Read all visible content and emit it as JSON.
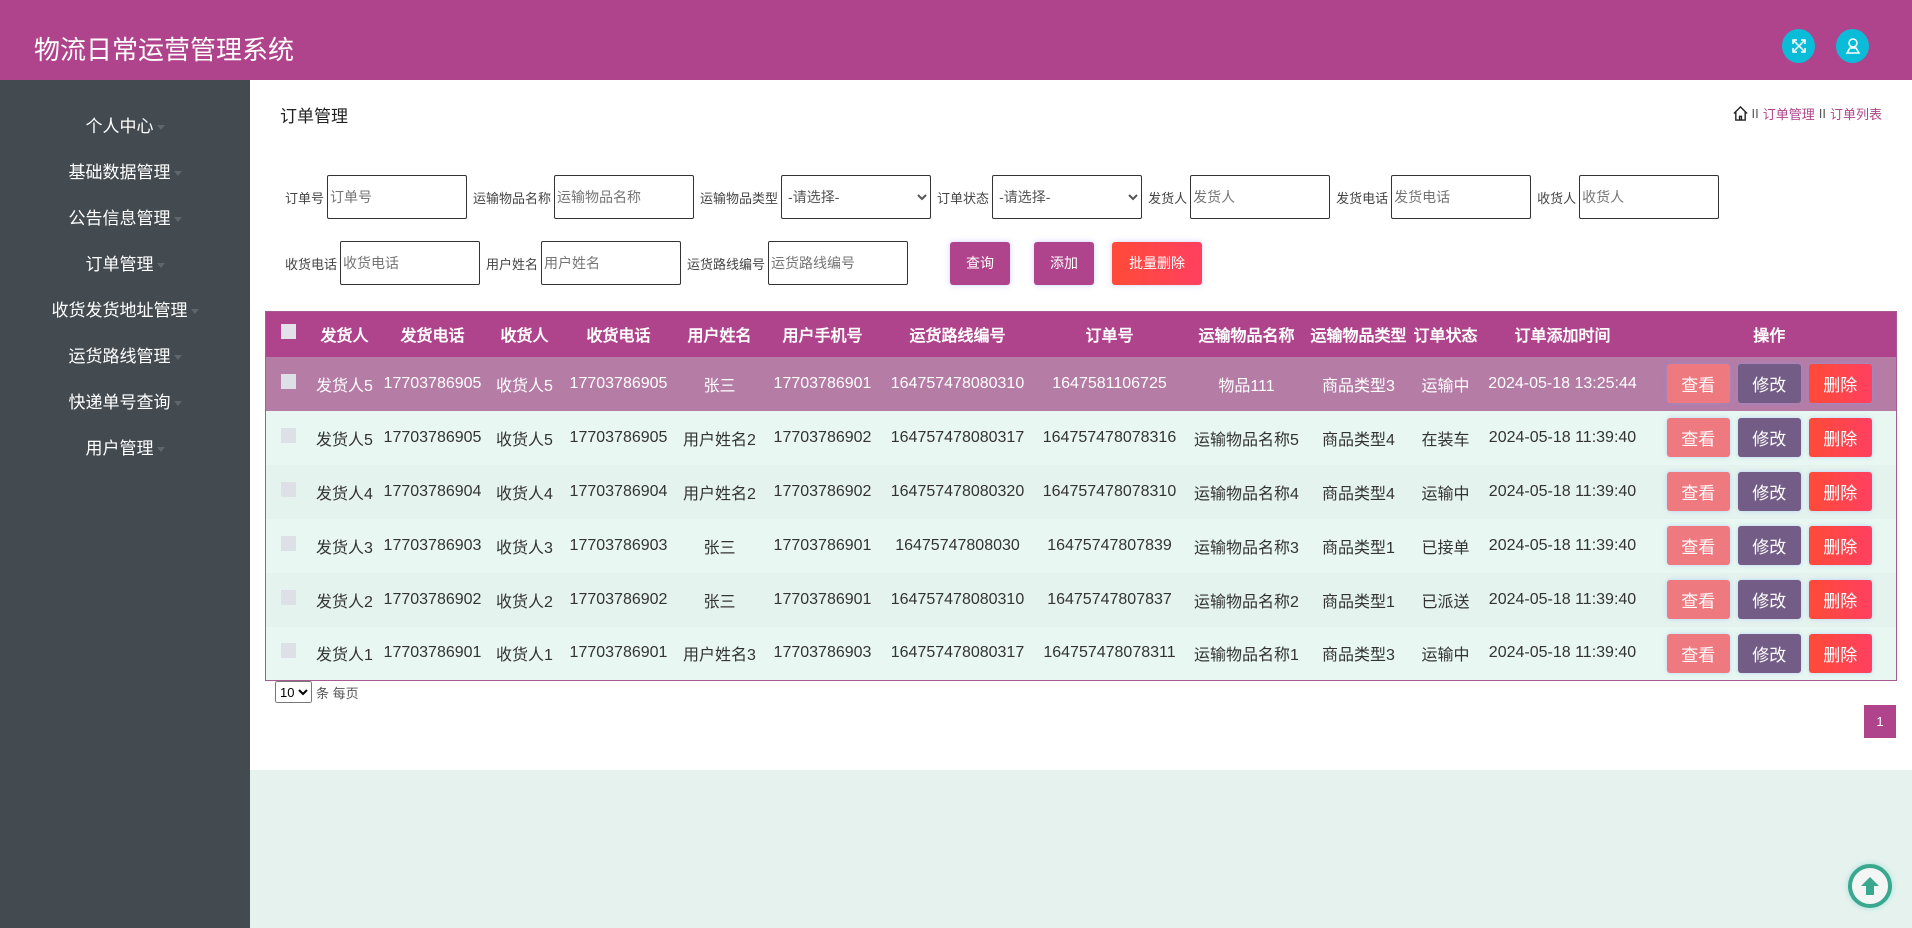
{
  "header": {
    "title": "物流日常运营管理系统",
    "icons": [
      "fullscreen-icon",
      "user-icon"
    ],
    "color": "#b0448c"
  },
  "sidebar": {
    "items": [
      {
        "label": "个人中心"
      },
      {
        "label": "基础数据管理"
      },
      {
        "label": "公告信息管理"
      },
      {
        "label": "订单管理"
      },
      {
        "label": "收货发货地址管理"
      },
      {
        "label": "运货路线管理"
      },
      {
        "label": "快递单号查询"
      },
      {
        "label": "用户管理"
      }
    ]
  },
  "page": {
    "title": "订单管理",
    "breadcrumb": [
      "订单管理",
      "订单列表"
    ],
    "separator": "II"
  },
  "search": {
    "order_no": {
      "label": "订单号",
      "placeholder": "订单号"
    },
    "goods_name": {
      "label": "运输物品名称",
      "placeholder": "运输物品名称"
    },
    "goods_type": {
      "label": "运输物品类型",
      "value": "-请选择-"
    },
    "status": {
      "label": "订单状态",
      "value": "-请选择-"
    },
    "sender": {
      "label": "发货人",
      "placeholder": "发货人"
    },
    "sender_phone": {
      "label": "发货电话",
      "placeholder": "发货电话"
    },
    "receiver": {
      "label": "收货人",
      "placeholder": "收货人"
    },
    "receiver_phone": {
      "label": "收货电话",
      "placeholder": "收货电话"
    },
    "user_name": {
      "label": "用户姓名",
      "placeholder": "用户姓名"
    },
    "route_no": {
      "label": "运货路线编号",
      "placeholder": "运货路线编号"
    },
    "query": "查询",
    "add": "添加",
    "batch_delete": "批量删除"
  },
  "table": {
    "columns": [
      "发货人",
      "发货电话",
      "收货人",
      "收货电话",
      "用户姓名",
      "用户手机号",
      "运货路线编号",
      "订单号",
      "运输物品名称",
      "运输物品类型",
      "订单状态",
      "订单添加时间",
      "操作"
    ],
    "actions": {
      "view": "查看",
      "edit": "修改",
      "delete": "删除"
    },
    "rows": [
      [
        "发货人5",
        "17703786905",
        "收货人5",
        "17703786905",
        "张三",
        "17703786901",
        "164757478080310",
        "1647581106725",
        "物品111",
        "商品类型3",
        "运输中",
        "2024-05-18 13:25:44"
      ],
      [
        "发货人5",
        "17703786905",
        "收货人5",
        "17703786905",
        "用户姓名2",
        "17703786902",
        "164757478080317",
        "164757478078316",
        "运输物品名称5",
        "商品类型4",
        "在装车",
        "2024-05-18 11:39:40"
      ],
      [
        "发货人4",
        "17703786904",
        "收货人4",
        "17703786904",
        "用户姓名2",
        "17703786902",
        "164757478080320",
        "164757478078310",
        "运输物品名称4",
        "商品类型4",
        "运输中",
        "2024-05-18 11:39:40"
      ],
      [
        "发货人3",
        "17703786903",
        "收货人3",
        "17703786903",
        "张三",
        "17703786901",
        "16475747808030",
        "16475747807839",
        "运输物品名称3",
        "商品类型1",
        "已接单",
        "2024-05-18 11:39:40"
      ],
      [
        "发货人2",
        "17703786902",
        "收货人2",
        "17703786902",
        "张三",
        "17703786901",
        "164757478080310",
        "16475747807837",
        "运输物品名称2",
        "商品类型1",
        "已派送",
        "2024-05-18 11:39:40"
      ],
      [
        "发货人1",
        "17703786901",
        "收货人1",
        "17703786901",
        "用户姓名3",
        "17703786903",
        "164757478080317",
        "164757478078311",
        "运输物品名称1",
        "商品类型3",
        "运输中",
        "2024-05-18 11:39:40"
      ]
    ]
  },
  "pagination": {
    "page_size": "10",
    "page_size_label": "条 每页",
    "current_page": "1"
  }
}
